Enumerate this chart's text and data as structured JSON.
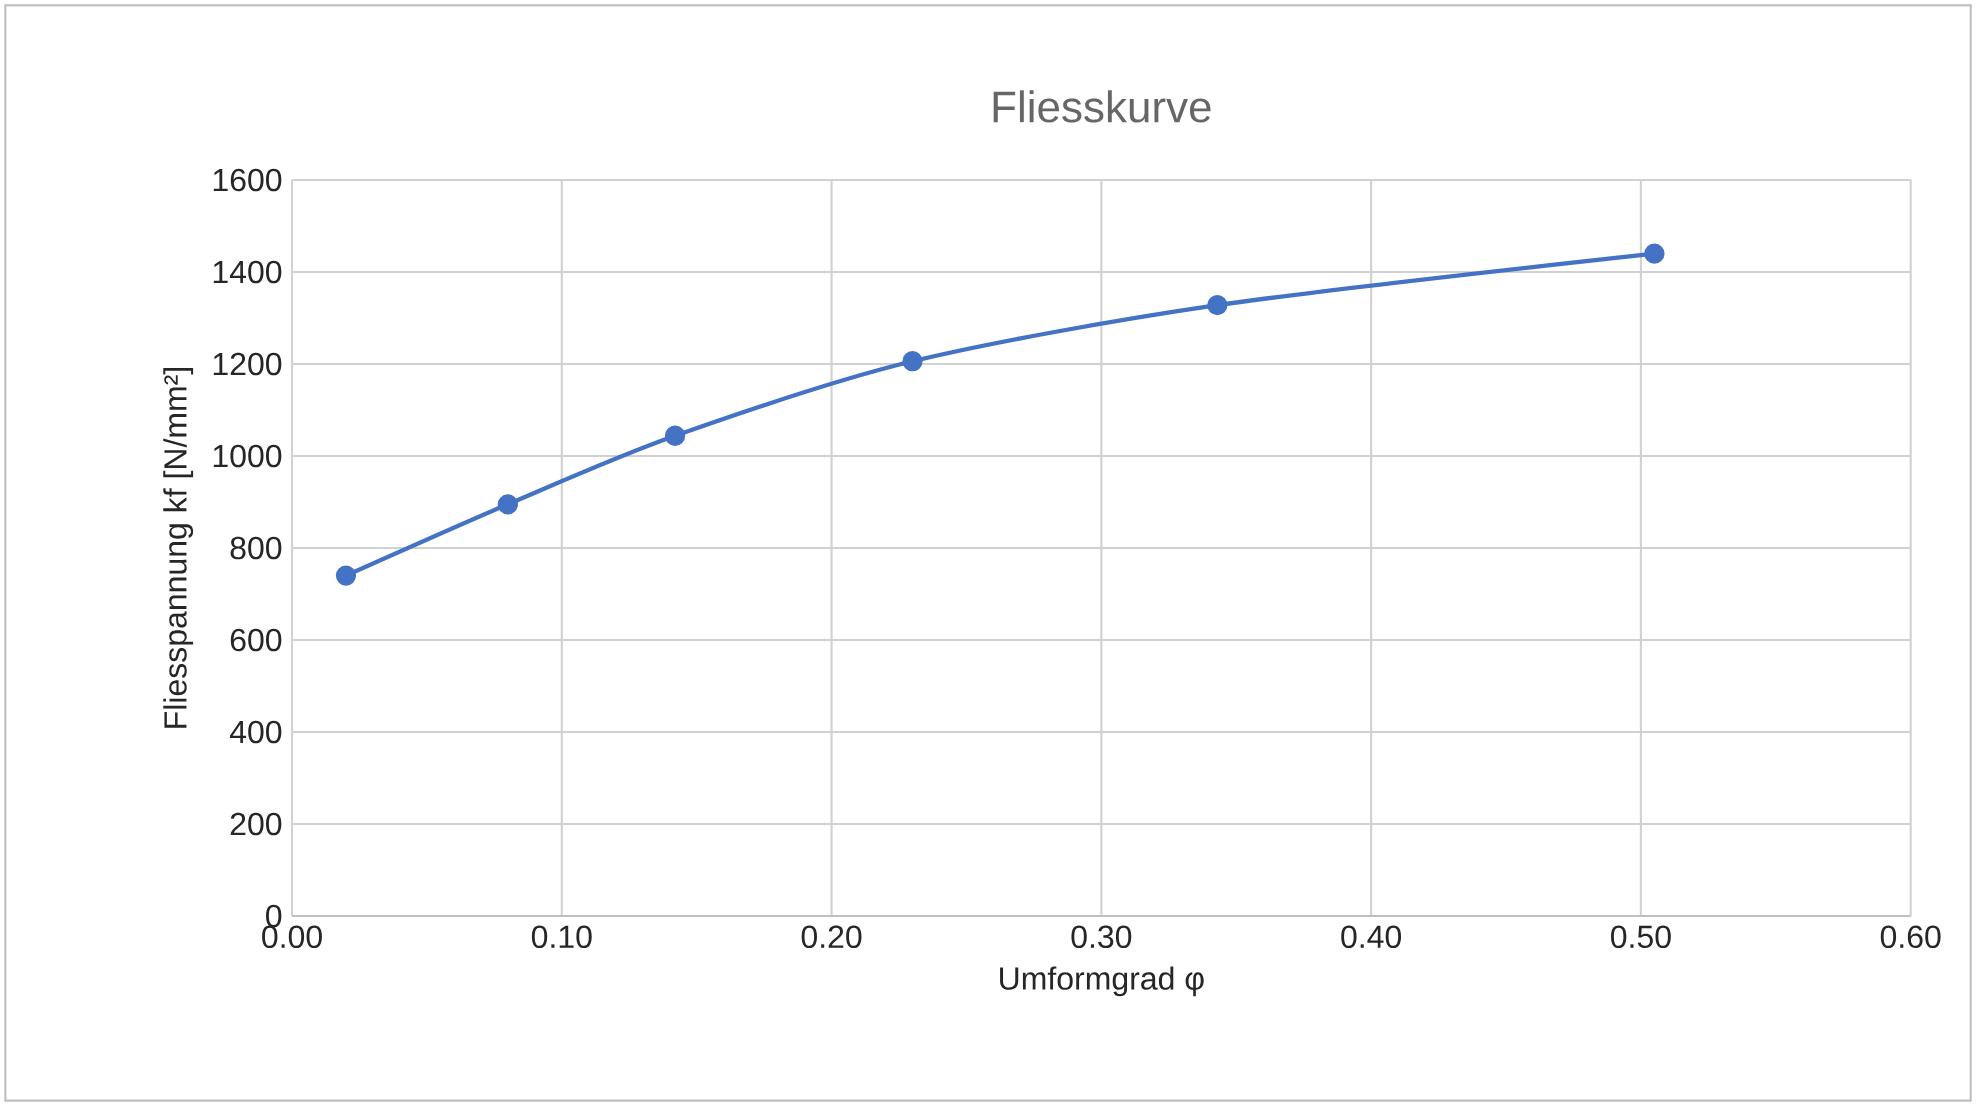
{
  "chart_data": {
    "type": "line",
    "title": "Fliesskurve",
    "xlabel": "Umformgrad φ",
    "ylabel": "Fliesspannung kf [N/mm²]",
    "x": [
      0.02,
      0.08,
      0.142,
      0.23,
      0.343,
      0.505
    ],
    "series": [
      {
        "color": "#4472c4",
        "values": [
          740,
          895,
          1044,
          1206,
          1328,
          1440
        ]
      }
    ],
    "xlim": [
      0,
      0.6
    ],
    "ylim": [
      0,
      1600
    ],
    "xticks": [
      {
        "value": 0,
        "label": "0.00"
      },
      {
        "value": 0.1,
        "label": "0.10"
      },
      {
        "value": 0.2,
        "label": "0.20"
      },
      {
        "value": 0.3,
        "label": "0.30"
      },
      {
        "value": 0.4,
        "label": "0.40"
      },
      {
        "value": 0.5,
        "label": "0.50"
      },
      {
        "value": 0.6,
        "label": "0.60"
      }
    ],
    "yticks": [
      0,
      200,
      400,
      600,
      800,
      1000,
      1200,
      1400,
      1600
    ],
    "grid": true,
    "marker": "circle",
    "line_style": "solid"
  }
}
